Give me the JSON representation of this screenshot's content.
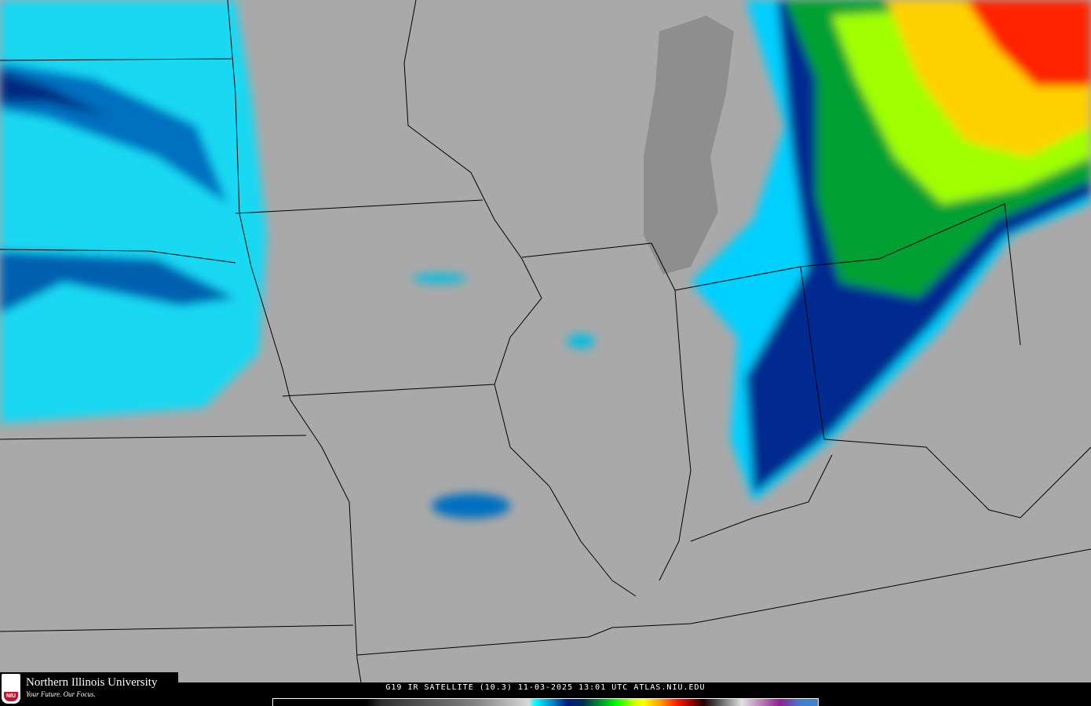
{
  "product_caption": "G19 IR SATELLITE (10.3) 11-03-2025 13:01 UTC  ATLAS.NIU.EDU",
  "logo": {
    "name": "Northern Illinois University",
    "tagline": "Your Future. Our Focus.",
    "mark": "NIU"
  },
  "colors": {
    "background_gray": "#a9a9a9",
    "cold_cyan": "#00ffff",
    "deep_blue": "#002a80",
    "green": "#00a030",
    "yellow": "#ffff00",
    "red": "#ff2000"
  }
}
